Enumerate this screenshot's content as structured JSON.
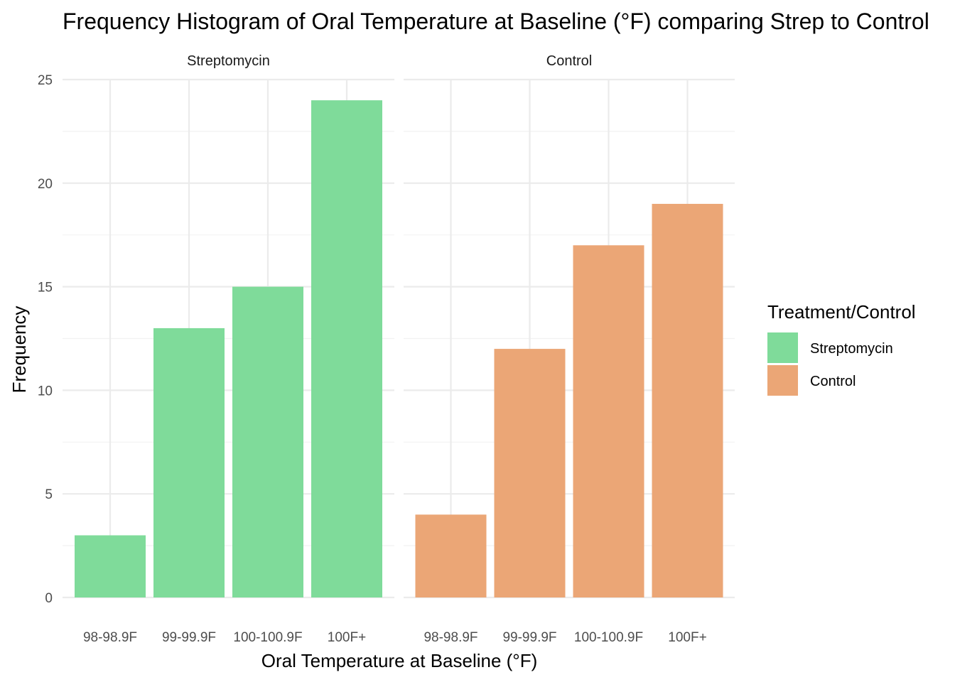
{
  "chart_data": {
    "type": "bar",
    "title": "Frequency Histogram of Oral Temperature at Baseline (°F) comparing Strep to Control",
    "xlabel": "Oral Temperature at Baseline (°F)",
    "ylabel": "Frequency",
    "categories": [
      "98-98.9F",
      "99-99.9F",
      "100-100.9F",
      "100F+"
    ],
    "ylim": [
      0,
      25
    ],
    "yticks": [
      0,
      5,
      10,
      15,
      20,
      25
    ],
    "grid": true,
    "legend": {
      "title": "Treatment/Control",
      "position": "right"
    },
    "facets": [
      "Streptomycin",
      "Control"
    ],
    "series": [
      {
        "name": "Streptomycin",
        "color": "#7fdb9a",
        "values": [
          3,
          13,
          15,
          24
        ]
      },
      {
        "name": "Control",
        "color": "#eba676",
        "values": [
          4,
          12,
          17,
          19
        ]
      }
    ]
  }
}
